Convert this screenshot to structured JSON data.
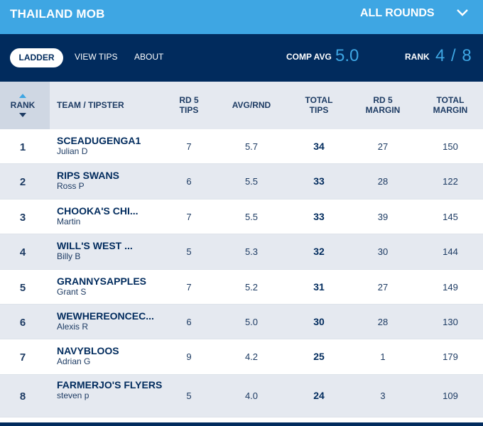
{
  "header": {
    "group_title": "THAILAND MOB",
    "round_select": "ALL ROUNDS"
  },
  "nav": {
    "tabs": [
      {
        "label": "LADDER"
      },
      {
        "label": "VIEW TIPS"
      },
      {
        "label": "ABOUT"
      }
    ],
    "comp_avg_label": "COMP AVG",
    "comp_avg_value": "5.0",
    "rank_label": "RANK",
    "rank_value": "4 / 8"
  },
  "table": {
    "headers": {
      "rank": "RANK",
      "team": "TEAM / TIPSTER",
      "rd5_tips_1": "RD 5",
      "rd5_tips_2": "TIPS",
      "avg": "AVG/RND",
      "total_tips_1": "TOTAL",
      "total_tips_2": "TIPS",
      "rd5_margin_1": "RD 5",
      "rd5_margin_2": "MARGIN",
      "total_margin_1": "TOTAL",
      "total_margin_2": "MARGIN"
    },
    "rows": [
      {
        "rank": "1",
        "team": "SCEADUGENGA1",
        "tipster": "Julian D",
        "rd5_tips": "7",
        "avg": "5.7",
        "total_tips": "34",
        "rd5_margin": "27",
        "total_margin": "150"
      },
      {
        "rank": "2",
        "team": "RIPS SWANS",
        "tipster": "Ross P",
        "rd5_tips": "6",
        "avg": "5.5",
        "total_tips": "33",
        "rd5_margin": "28",
        "total_margin": "122"
      },
      {
        "rank": "3",
        "team": "CHOOKA'S CHI...",
        "tipster": "Martin",
        "rd5_tips": "7",
        "avg": "5.5",
        "total_tips": "33",
        "rd5_margin": "39",
        "total_margin": "145"
      },
      {
        "rank": "4",
        "team": "WILL'S WEST ...",
        "tipster": "Billy B",
        "rd5_tips": "5",
        "avg": "5.3",
        "total_tips": "32",
        "rd5_margin": "30",
        "total_margin": "144"
      },
      {
        "rank": "5",
        "team": "GRANNYSAPPLES",
        "tipster": "Grant S",
        "rd5_tips": "7",
        "avg": "5.2",
        "total_tips": "31",
        "rd5_margin": "27",
        "total_margin": "149"
      },
      {
        "rank": "6",
        "team": "WEWHEREONCEC...",
        "tipster": "Alexis R",
        "rd5_tips": "6",
        "avg": "5.0",
        "total_tips": "30",
        "rd5_margin": "28",
        "total_margin": "130"
      },
      {
        "rank": "7",
        "team": "NAVYBLOOS",
        "tipster": "Adrian G",
        "rd5_tips": "9",
        "avg": "4.2",
        "total_tips": "25",
        "rd5_margin": "1",
        "total_margin": "179"
      },
      {
        "rank": "8",
        "team": "FARMERJO'S FLYERS",
        "tipster": "steven p",
        "rd5_tips": "5",
        "avg": "4.0",
        "total_tips": "24",
        "rd5_margin": "3",
        "total_margin": "109"
      }
    ]
  },
  "colors": {
    "top_bar": "#3ea6e3",
    "nav_bar": "#012b5d",
    "accent": "#3ea6e3",
    "row_alt": "#e5e9f0"
  }
}
